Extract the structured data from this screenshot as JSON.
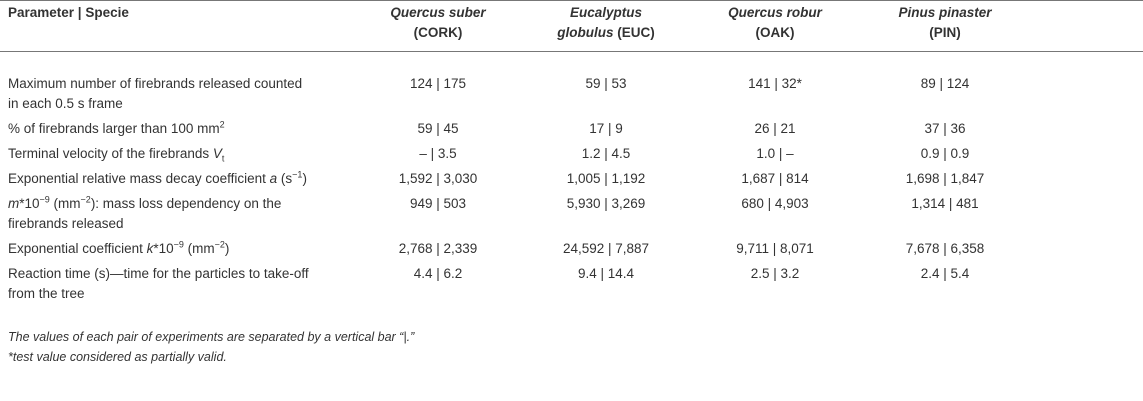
{
  "table": {
    "header": {
      "first": "Parameter | Specie",
      "columns": [
        {
          "species": "Quercus suber",
          "code": "(CORK)"
        },
        {
          "species": "Eucalyptus globulus",
          "code": "(EUC)"
        },
        {
          "species": "Quercus robur",
          "code": "(OAK)"
        },
        {
          "species": "Pinus pinaster",
          "code": "(PIN)"
        }
      ]
    },
    "rows": [
      {
        "label": [
          "Maximum number of firebrands released counted in each 0.5 s frame"
        ],
        "cells": [
          "124 | 175",
          "59 | 53",
          "141 | 32*",
          "89 | 124"
        ]
      },
      {
        "label": [
          "% of firebrands larger than 100 mm",
          {
            "sup": "2"
          }
        ],
        "cells": [
          "59 | 45",
          "17 | 9",
          "26 | 21",
          "37 | 36"
        ]
      },
      {
        "label": [
          "Terminal velocity of the firebrands ",
          {
            "italic": "V"
          },
          {
            "sub": "t"
          }
        ],
        "cells": [
          "– | 3.5",
          "1.2 | 4.5",
          "1.0 | –",
          "0.9 | 0.9"
        ]
      },
      {
        "label": [
          "Exponential relative mass decay coefficient ",
          {
            "italic": "a"
          },
          " (s",
          {
            "sup": "−1"
          },
          ")"
        ],
        "cells": [
          "1,592 | 3,030",
          "1,005 | 1,192",
          "1,687 | 814",
          "1,698 | 1,847"
        ]
      },
      {
        "label": [
          {
            "italic": "m"
          },
          "*10",
          {
            "sup": "−9"
          },
          " (mm",
          {
            "sup": "−2"
          },
          "): mass loss dependency on the firebrands released"
        ],
        "cells": [
          "949 | 503",
          "5,930 | 3,269",
          "680 | 4,903",
          "1,314 | 481"
        ]
      },
      {
        "label": [
          "Exponential coefficient ",
          {
            "italic": "k"
          },
          "*10",
          {
            "sup": "−9"
          },
          " (mm",
          {
            "sup": "−2"
          },
          ")"
        ],
        "cells": [
          "2,768 | 2,339",
          "24,592 | 7,887",
          "9,711 | 8,071",
          "7,678 | 6,358"
        ]
      },
      {
        "label": [
          "Reaction time (s)—time for the particles to take-off from the tree"
        ],
        "cells": [
          "4.4 | 6.2",
          "9.4 | 14.4",
          "2.5 | 3.2",
          "2.4 | 5.4"
        ]
      }
    ],
    "footnotes": [
      "The values of each pair of experiments are separated by a vertical bar “|.”",
      "*test value considered as partially valid."
    ]
  }
}
